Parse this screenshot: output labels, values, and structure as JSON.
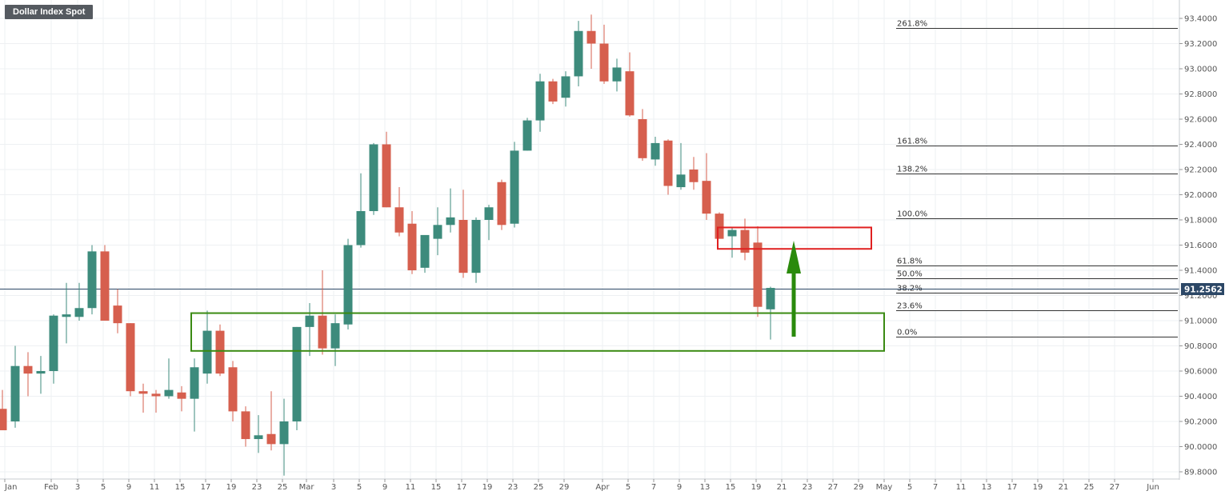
{
  "chart_data": {
    "type": "candlestick",
    "title": "Dollar Index Spot",
    "last_price": "91.2562",
    "x_tick_labels": [
      "Jan",
      "Feb",
      "3",
      "5",
      "9",
      "11",
      "15",
      "17",
      "19",
      "23",
      "25",
      "Mar",
      "3",
      "5",
      "9",
      "11",
      "15",
      "17",
      "19",
      "23",
      "25",
      "29",
      "Apr",
      "5",
      "7",
      "9",
      "13",
      "15",
      "19",
      "21",
      "23",
      "27",
      "29",
      "May",
      "5",
      "7",
      "11",
      "13",
      "17",
      "19",
      "21",
      "25",
      "27",
      "Jun"
    ],
    "y_tick_labels": [
      "93.4000",
      "93.2000",
      "93.0000",
      "92.8000",
      "92.6000",
      "92.4000",
      "92.2000",
      "92.0000",
      "91.8000",
      "91.6000",
      "91.4000",
      "91.2000",
      "91.0000",
      "90.8000",
      "90.6000",
      "90.4000",
      "90.2000",
      "90.0000",
      "89.8000"
    ],
    "ylim": [
      89.8,
      93.4
    ],
    "candles": [
      {
        "o": 90.3,
        "h": 90.45,
        "l": 90.13,
        "c": 90.13
      },
      {
        "o": 90.2,
        "h": 90.8,
        "l": 90.15,
        "c": 90.64
      },
      {
        "o": 90.64,
        "h": 90.75,
        "l": 90.4,
        "c": 90.58
      },
      {
        "o": 90.58,
        "h": 90.72,
        "l": 90.42,
        "c": 90.6
      },
      {
        "o": 90.6,
        "h": 91.05,
        "l": 90.5,
        "c": 91.04
      },
      {
        "o": 91.03,
        "h": 91.3,
        "l": 90.82,
        "c": 91.05
      },
      {
        "o": 91.03,
        "h": 91.3,
        "l": 91.0,
        "c": 91.1
      },
      {
        "o": 91.1,
        "h": 91.6,
        "l": 91.05,
        "c": 91.55
      },
      {
        "o": 91.55,
        "h": 91.6,
        "l": 91.0,
        "c": 91.0
      },
      {
        "o": 91.12,
        "h": 91.25,
        "l": 90.9,
        "c": 90.98
      },
      {
        "o": 90.98,
        "h": 90.98,
        "l": 90.4,
        "c": 90.44
      },
      {
        "o": 90.44,
        "h": 90.5,
        "l": 90.27,
        "c": 90.42
      },
      {
        "o": 90.42,
        "h": 90.45,
        "l": 90.27,
        "c": 90.4
      },
      {
        "o": 90.4,
        "h": 90.7,
        "l": 90.38,
        "c": 90.45
      },
      {
        "o": 90.43,
        "h": 90.48,
        "l": 90.28,
        "c": 90.38
      },
      {
        "o": 90.38,
        "h": 90.7,
        "l": 90.12,
        "c": 90.63
      },
      {
        "o": 90.58,
        "h": 91.08,
        "l": 90.5,
        "c": 90.92
      },
      {
        "o": 90.92,
        "h": 90.97,
        "l": 90.56,
        "c": 90.58
      },
      {
        "o": 90.63,
        "h": 90.68,
        "l": 90.2,
        "c": 90.28
      },
      {
        "o": 90.28,
        "h": 90.32,
        "l": 90.0,
        "c": 90.06
      },
      {
        "o": 90.06,
        "h": 90.25,
        "l": 89.95,
        "c": 90.09
      },
      {
        "o": 90.1,
        "h": 90.44,
        "l": 89.97,
        "c": 90.02
      },
      {
        "o": 90.02,
        "h": 90.38,
        "l": 89.77,
        "c": 90.2
      },
      {
        "o": 90.2,
        "h": 90.95,
        "l": 90.13,
        "c": 90.95
      },
      {
        "o": 90.95,
        "h": 91.14,
        "l": 90.72,
        "c": 91.04
      },
      {
        "o": 91.04,
        "h": 91.4,
        "l": 90.73,
        "c": 90.78
      },
      {
        "o": 90.78,
        "h": 91.05,
        "l": 90.64,
        "c": 90.98
      },
      {
        "o": 90.97,
        "h": 91.65,
        "l": 90.93,
        "c": 91.6
      },
      {
        "o": 91.6,
        "h": 92.17,
        "l": 91.58,
        "c": 91.87
      },
      {
        "o": 91.87,
        "h": 92.41,
        "l": 91.84,
        "c": 92.4
      },
      {
        "o": 92.4,
        "h": 92.5,
        "l": 91.9,
        "c": 91.9
      },
      {
        "o": 91.9,
        "h": 92.06,
        "l": 91.67,
        "c": 91.7
      },
      {
        "o": 91.77,
        "h": 91.87,
        "l": 91.37,
        "c": 91.4
      },
      {
        "o": 91.42,
        "h": 91.67,
        "l": 91.38,
        "c": 91.68
      },
      {
        "o": 91.65,
        "h": 91.9,
        "l": 91.52,
        "c": 91.76
      },
      {
        "o": 91.76,
        "h": 92.05,
        "l": 91.7,
        "c": 91.82
      },
      {
        "o": 91.8,
        "h": 92.04,
        "l": 91.34,
        "c": 91.38
      },
      {
        "o": 91.38,
        "h": 91.82,
        "l": 91.3,
        "c": 91.8
      },
      {
        "o": 91.8,
        "h": 91.92,
        "l": 91.64,
        "c": 91.9
      },
      {
        "o": 92.1,
        "h": 92.12,
        "l": 91.72,
        "c": 91.76
      },
      {
        "o": 91.77,
        "h": 92.42,
        "l": 91.74,
        "c": 92.35
      },
      {
        "o": 92.35,
        "h": 92.61,
        "l": 92.35,
        "c": 92.59
      },
      {
        "o": 92.59,
        "h": 92.96,
        "l": 92.5,
        "c": 92.9
      },
      {
        "o": 92.9,
        "h": 92.92,
        "l": 92.72,
        "c": 92.74
      },
      {
        "o": 92.77,
        "h": 92.98,
        "l": 92.7,
        "c": 92.94
      },
      {
        "o": 92.94,
        "h": 93.38,
        "l": 92.86,
        "c": 93.3
      },
      {
        "o": 93.3,
        "h": 93.43,
        "l": 93.0,
        "c": 93.2
      },
      {
        "o": 93.2,
        "h": 93.35,
        "l": 92.88,
        "c": 92.9
      },
      {
        "o": 92.9,
        "h": 93.08,
        "l": 92.82,
        "c": 93.01
      },
      {
        "o": 92.98,
        "h": 93.13,
        "l": 92.62,
        "c": 92.63
      },
      {
        "o": 92.6,
        "h": 92.68,
        "l": 92.27,
        "c": 92.29
      },
      {
        "o": 92.28,
        "h": 92.46,
        "l": 92.23,
        "c": 92.41
      },
      {
        "o": 92.43,
        "h": 92.44,
        "l": 92.0,
        "c": 92.07
      },
      {
        "o": 92.06,
        "h": 92.41,
        "l": 92.04,
        "c": 92.16
      },
      {
        "o": 92.2,
        "h": 92.3,
        "l": 92.04,
        "c": 92.1
      },
      {
        "o": 92.11,
        "h": 92.33,
        "l": 91.8,
        "c": 91.85
      },
      {
        "o": 91.85,
        "h": 91.86,
        "l": 91.65,
        "c": 91.65
      },
      {
        "o": 91.67,
        "h": 91.74,
        "l": 91.5,
        "c": 91.72
      },
      {
        "o": 91.72,
        "h": 91.81,
        "l": 91.48,
        "c": 91.54
      },
      {
        "o": 91.62,
        "h": 91.75,
        "l": 91.03,
        "c": 91.11
      },
      {
        "o": 91.09,
        "h": 91.27,
        "l": 90.85,
        "c": 91.26
      }
    ],
    "fib_levels": [
      {
        "label": "261.8%",
        "value": 93.325
      },
      {
        "label": "161.8%",
        "value": 92.388
      },
      {
        "label": "138.2%",
        "value": 92.166
      },
      {
        "label": "100.0%",
        "value": 91.81
      },
      {
        "label": "61.8%",
        "value": 91.44
      },
      {
        "label": "50.0%",
        "value": 91.335
      },
      {
        "label": "38.2%",
        "value": 91.225
      },
      {
        "label": "23.6%",
        "value": 91.085
      },
      {
        "label": "0.0%",
        "value": 90.87
      }
    ],
    "current_price_value": 91.2562,
    "support_zone": {
      "y_high": 91.06,
      "y_low": 90.76
    },
    "resistance_zone": {
      "y_high": 91.74,
      "y_low": 91.57
    },
    "colors": {
      "up": "#3d8b7c",
      "down": "#d65f4e",
      "support_box": "#3a8a12",
      "resistance_box": "#e02020",
      "arrow": "#2a8a0c",
      "price_badge": "#2c4766",
      "grid": "#eef0f3"
    }
  }
}
